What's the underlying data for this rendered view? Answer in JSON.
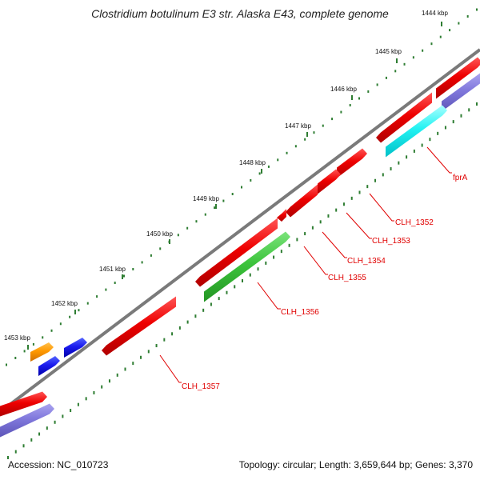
{
  "title": "Clostridium botulinum E3 str. Alaska E43, complete genome",
  "footer": {
    "accession": "Accession: NC_010723",
    "summary": "Topology: circular; Length: 3,659,644 bp; Genes: 3,370"
  },
  "colors": {
    "backbone": "#7a7a7a",
    "tick": "#2e7d32",
    "label": "#e00000",
    "ruler_text": "#111111"
  },
  "ruler_labels": [
    {
      "text": "1444 kbp"
    },
    {
      "text": "1445 kbp"
    },
    {
      "text": "1446 kbp"
    },
    {
      "text": "1447 kbp"
    },
    {
      "text": "1448 kbp"
    },
    {
      "text": "1449 kbp"
    },
    {
      "text": "1450 kbp"
    },
    {
      "text": "1451 kbp"
    },
    {
      "text": "1452 kbp"
    },
    {
      "text": "1453 kbp"
    }
  ],
  "gene_labels": [
    {
      "text": "fprA"
    },
    {
      "text": "CLH_1352"
    },
    {
      "text": "CLH_1353"
    },
    {
      "text": "CLH_1354"
    },
    {
      "text": "CLH_1355"
    },
    {
      "text": "CLH_1356"
    },
    {
      "text": "CLH_1357"
    }
  ],
  "features": [
    {
      "name": "feature-red-top-right",
      "color": "red"
    },
    {
      "name": "feature-lavender-top-right",
      "color": "lavender"
    },
    {
      "name": "gene-fprA-red",
      "color": "red"
    },
    {
      "name": "gene-fprA-cyan",
      "color": "cyan"
    },
    {
      "name": "gene-CLH_1352",
      "color": "red"
    },
    {
      "name": "gene-CLH_1353",
      "color": "red"
    },
    {
      "name": "gene-CLH_1354",
      "color": "red"
    },
    {
      "name": "gene-CLH_1355",
      "color": "red"
    },
    {
      "name": "gene-CLH_1356-red",
      "color": "red"
    },
    {
      "name": "gene-CLH_1356-green",
      "color": "green"
    },
    {
      "name": "gene-CLH_1357",
      "color": "red"
    },
    {
      "name": "feature-blue-upper",
      "color": "blue"
    },
    {
      "name": "feature-orange",
      "color": "orange"
    },
    {
      "name": "feature-blue-lower",
      "color": "blue"
    },
    {
      "name": "feature-red-bottom-left",
      "color": "red"
    },
    {
      "name": "feature-lavender-bottom-left",
      "color": "lavender"
    }
  ]
}
